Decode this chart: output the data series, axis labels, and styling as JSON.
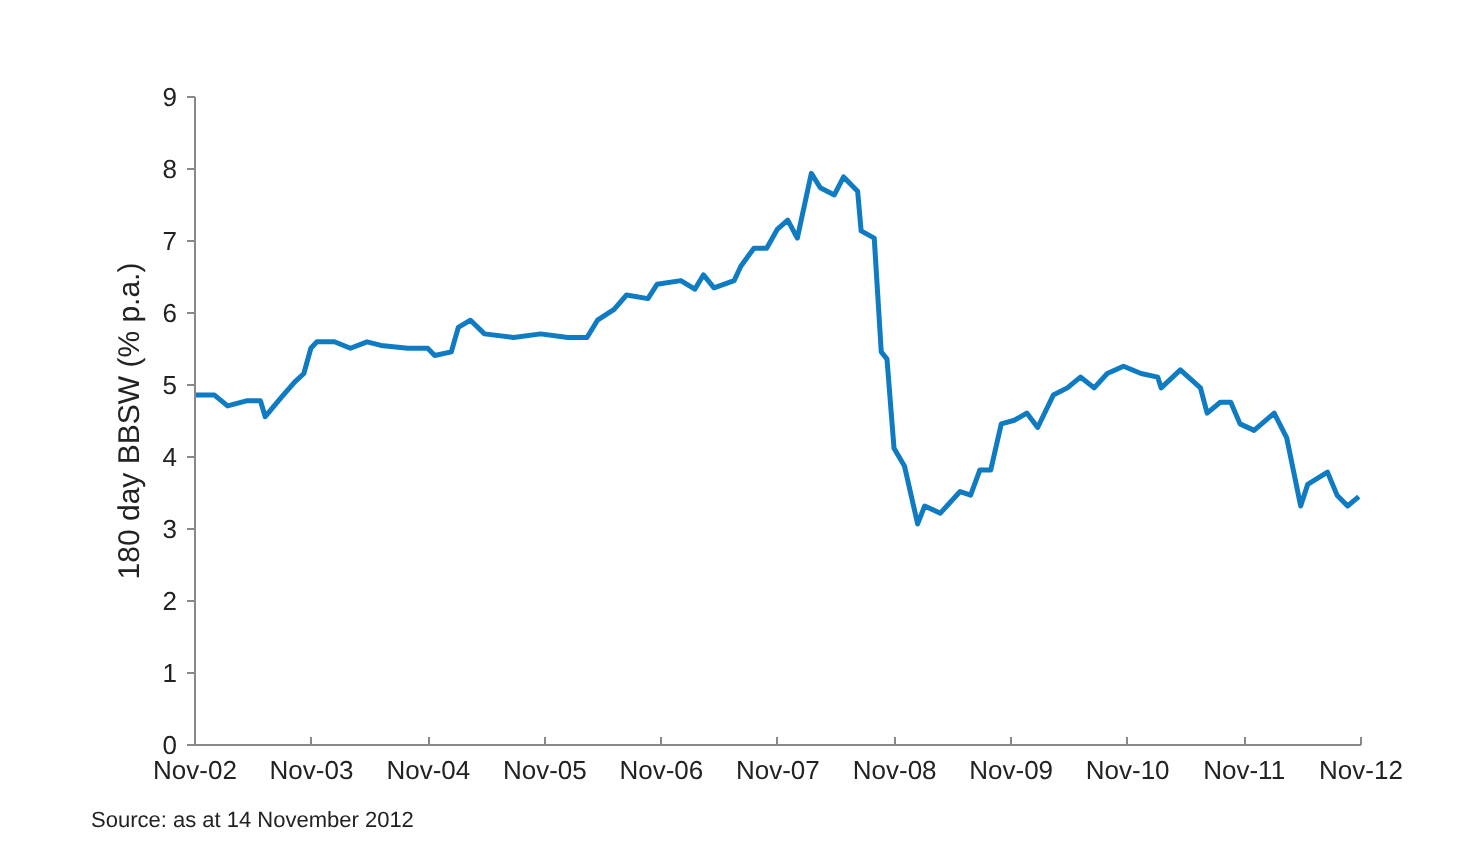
{
  "chart_data": {
    "type": "line",
    "ylabel": "180 day BBSW (% p.a.)",
    "annotations": [
      "Source: as at 14 November 2012"
    ],
    "x": [
      "2002-11-01",
      "2003-01-01",
      "2003-02-11",
      "2003-04-11",
      "2003-05-25",
      "2003-06-09",
      "2003-07-26",
      "2003-09-09",
      "2003-10-08",
      "2003-10-30",
      "2003-11-18",
      "2004-01-12",
      "2004-03-02",
      "2004-04-23",
      "2004-06-06",
      "2004-08-29",
      "2004-10-30",
      "2004-11-21",
      "2005-01-12",
      "2005-02-03",
      "2005-03-13",
      "2005-04-26",
      "2005-07-26",
      "2005-10-19",
      "2006-01-12",
      "2006-03-13",
      "2006-04-15",
      "2006-06-06",
      "2006-07-15",
      "2006-09-20",
      "2006-10-19",
      "2007-01-01",
      "2007-02-14",
      "2007-03-13",
      "2007-04-15",
      "2007-06-17",
      "2007-07-08",
      "2007-08-18",
      "2007-09-27",
      "2007-10-30",
      "2007-12-02",
      "2008-01-01",
      "2008-02-14",
      "2008-03-13",
      "2008-04-26",
      "2008-05-25",
      "2008-07-08",
      "2008-07-19",
      "2008-08-29",
      "2008-09-20",
      "2008-10-08",
      "2008-10-30",
      "2008-12-02",
      "2009-01-12",
      "2009-02-03",
      "2009-03-24",
      "2009-05-25",
      "2009-06-27",
      "2009-07-26",
      "2009-08-29",
      "2009-10-01",
      "2009-11-11",
      "2009-12-20",
      "2010-01-23",
      "2010-03-13",
      "2010-04-26",
      "2010-06-06",
      "2010-07-19",
      "2010-08-29",
      "2010-10-19",
      "2010-12-13",
      "2011-02-03",
      "2011-02-14",
      "2011-04-15",
      "2011-06-17",
      "2011-07-08",
      "2011-08-18",
      "2011-09-20",
      "2011-10-19",
      "2011-12-02",
      "2012-02-03",
      "2012-03-13",
      "2012-04-26",
      "2012-05-18",
      "2012-07-19",
      "2012-08-18",
      "2012-09-20",
      "2012-10-25"
    ],
    "series": [
      {
        "color": "#0f7bc3",
        "values": [
          4.86,
          4.86,
          4.71,
          4.78,
          4.78,
          4.56,
          4.81,
          5.04,
          5.16,
          5.51,
          5.6,
          5.6,
          5.51,
          5.6,
          5.55,
          5.51,
          5.51,
          5.41,
          5.46,
          5.8,
          5.9,
          5.71,
          5.66,
          5.71,
          5.66,
          5.66,
          5.9,
          6.05,
          6.25,
          6.2,
          6.4,
          6.45,
          6.33,
          6.53,
          6.35,
          6.45,
          6.65,
          6.9,
          6.9,
          7.16,
          7.29,
          7.04,
          7.94,
          7.74,
          7.64,
          7.89,
          7.69,
          7.14,
          7.04,
          5.46,
          5.36,
          4.12,
          3.87,
          3.07,
          3.32,
          3.22,
          3.52,
          3.47,
          3.82,
          3.82,
          4.46,
          4.51,
          4.61,
          4.41,
          4.86,
          4.96,
          5.11,
          4.96,
          5.16,
          5.26,
          5.16,
          5.11,
          4.96,
          5.21,
          4.96,
          4.61,
          4.76,
          4.76,
          4.46,
          4.37,
          4.61,
          4.27,
          3.32,
          3.62,
          3.79,
          3.47,
          3.32,
          3.45
        ]
      }
    ],
    "xlim": [
      "2002-11-01",
      "2012-11-01"
    ],
    "ylim": [
      0,
      9
    ],
    "xticks": [
      {
        "value": "2002-11-01",
        "label": "Nov-02"
      },
      {
        "value": "2003-11-01",
        "label": "Nov-03"
      },
      {
        "value": "2004-11-01",
        "label": "Nov-04"
      },
      {
        "value": "2005-11-01",
        "label": "Nov-05"
      },
      {
        "value": "2006-11-01",
        "label": "Nov-06"
      },
      {
        "value": "2007-11-01",
        "label": "Nov-07"
      },
      {
        "value": "2008-11-01",
        "label": "Nov-08"
      },
      {
        "value": "2009-11-01",
        "label": "Nov-09"
      },
      {
        "value": "2010-11-01",
        "label": "Nov-10"
      },
      {
        "value": "2011-11-01",
        "label": "Nov-11"
      },
      {
        "value": "2012-11-01",
        "label": "Nov-12"
      }
    ],
    "yticks": [
      0,
      1,
      2,
      3,
      4,
      5,
      6,
      7,
      8,
      9
    ],
    "grid": false,
    "marker": "none",
    "line_style": "solid"
  }
}
